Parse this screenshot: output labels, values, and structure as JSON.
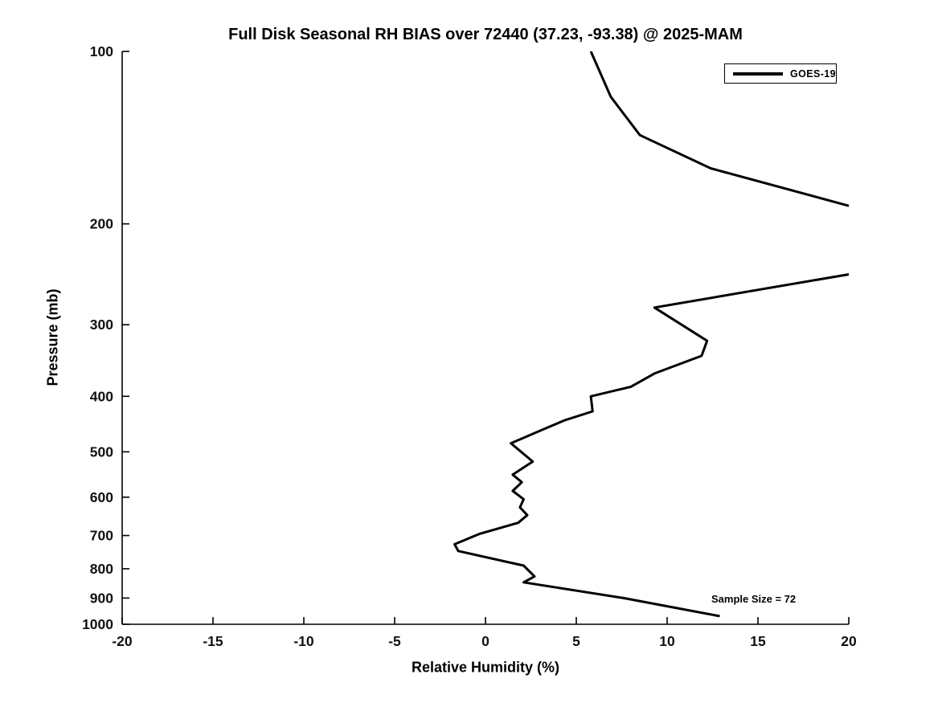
{
  "chart_data": {
    "type": "line",
    "title": "Full Disk Seasonal RH BIAS over 72440 (37.23, -93.38) @ 2025-MAM",
    "xlabel": "Relative Humidity (%)",
    "ylabel": "Pressure (mb)",
    "xlim": [
      -20,
      20
    ],
    "ylim": [
      100,
      1000
    ],
    "y_scale": "log",
    "y_orientation": "100 mb at top, 1000 mb at bottom",
    "x_ticks": [
      -20,
      -15,
      -10,
      -5,
      0,
      5,
      10,
      15,
      20
    ],
    "y_ticks": [
      100,
      200,
      300,
      400,
      500,
      600,
      700,
      800,
      900,
      1000
    ],
    "grid": false,
    "box": false,
    "legend": {
      "position": "upper right",
      "entries": [
        {
          "label": "GOES-19",
          "color": "#000000",
          "line_width": 3
        }
      ]
    },
    "annotation": "Sample Size = 72",
    "series": [
      {
        "name": "GOES-19",
        "color": "#000000",
        "line_width": 3,
        "note": "Points are [rh_bias_percent, pressure_mb], digitized from plot. Bias exceeds +20% between about 186 mb and 245 mb, so the curve is clipped at the right plot edge (two visible segments).",
        "segments": [
          [
            [
              5.8,
              100
            ],
            [
              6.9,
              120
            ],
            [
              8.5,
              140
            ],
            [
              12.4,
              160
            ],
            [
              20.0,
              186
            ]
          ],
          [
            [
              20.0,
              245
            ],
            [
              9.3,
              280
            ],
            [
              12.2,
              320
            ],
            [
              11.9,
              340
            ],
            [
              9.3,
              365
            ],
            [
              8.0,
              385
            ],
            [
              5.8,
              400
            ],
            [
              5.9,
              425
            ],
            [
              4.4,
              440
            ],
            [
              3.3,
              455
            ],
            [
              1.4,
              483
            ],
            [
              2.6,
              520
            ],
            [
              1.5,
              548
            ],
            [
              2.0,
              565
            ],
            [
              1.5,
              585
            ],
            [
              2.1,
              605
            ],
            [
              1.9,
              625
            ],
            [
              2.3,
              645
            ],
            [
              1.8,
              665
            ],
            [
              -0.3,
              695
            ],
            [
              -1.7,
              725
            ],
            [
              -1.5,
              745
            ],
            [
              2.1,
              790
            ],
            [
              2.7,
              825
            ],
            [
              2.1,
              845
            ],
            [
              7.6,
              900
            ],
            [
              12.9,
              968
            ]
          ]
        ]
      }
    ]
  }
}
